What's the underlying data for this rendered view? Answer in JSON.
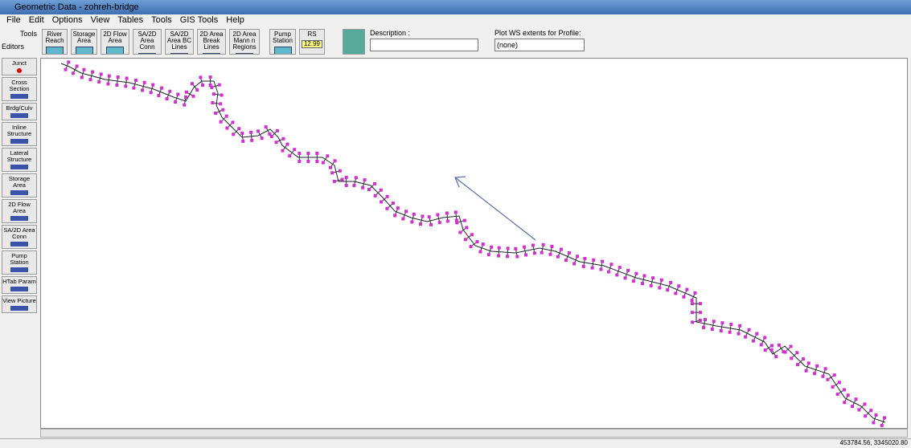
{
  "window": {
    "title": "Geometric Data - zohreh-bridge"
  },
  "menu": [
    "File",
    "Edit",
    "Options",
    "View",
    "Tables",
    "Tools",
    "GIS Tools",
    "Help"
  ],
  "toolbar": {
    "tools": "Tools",
    "editors": "Editors",
    "buttons": [
      "River Reach",
      "Storage Area",
      "2D Flow Area",
      "SA/2D Area Conn",
      "SA/2D Area BC Lines",
      "2D Area Break Lines",
      "2D Area Mann n Regions",
      "Pump Station",
      "RS"
    ],
    "rs_value": "12.99",
    "description_label": "Description :",
    "plot_label": "Plot WS extents for Profile:",
    "profile": "(none)"
  },
  "editors": [
    "Junct",
    "Cross Section",
    "Brdg/Culv",
    "Inline Structure",
    "Lateral Structure",
    "Storage Area",
    "2D Flow Area",
    "SA/2D Area Conn",
    "Pump Station",
    "HTab Param",
    "View Picture"
  ],
  "status": {
    "coords": "453784.56, 3345020.80"
  }
}
